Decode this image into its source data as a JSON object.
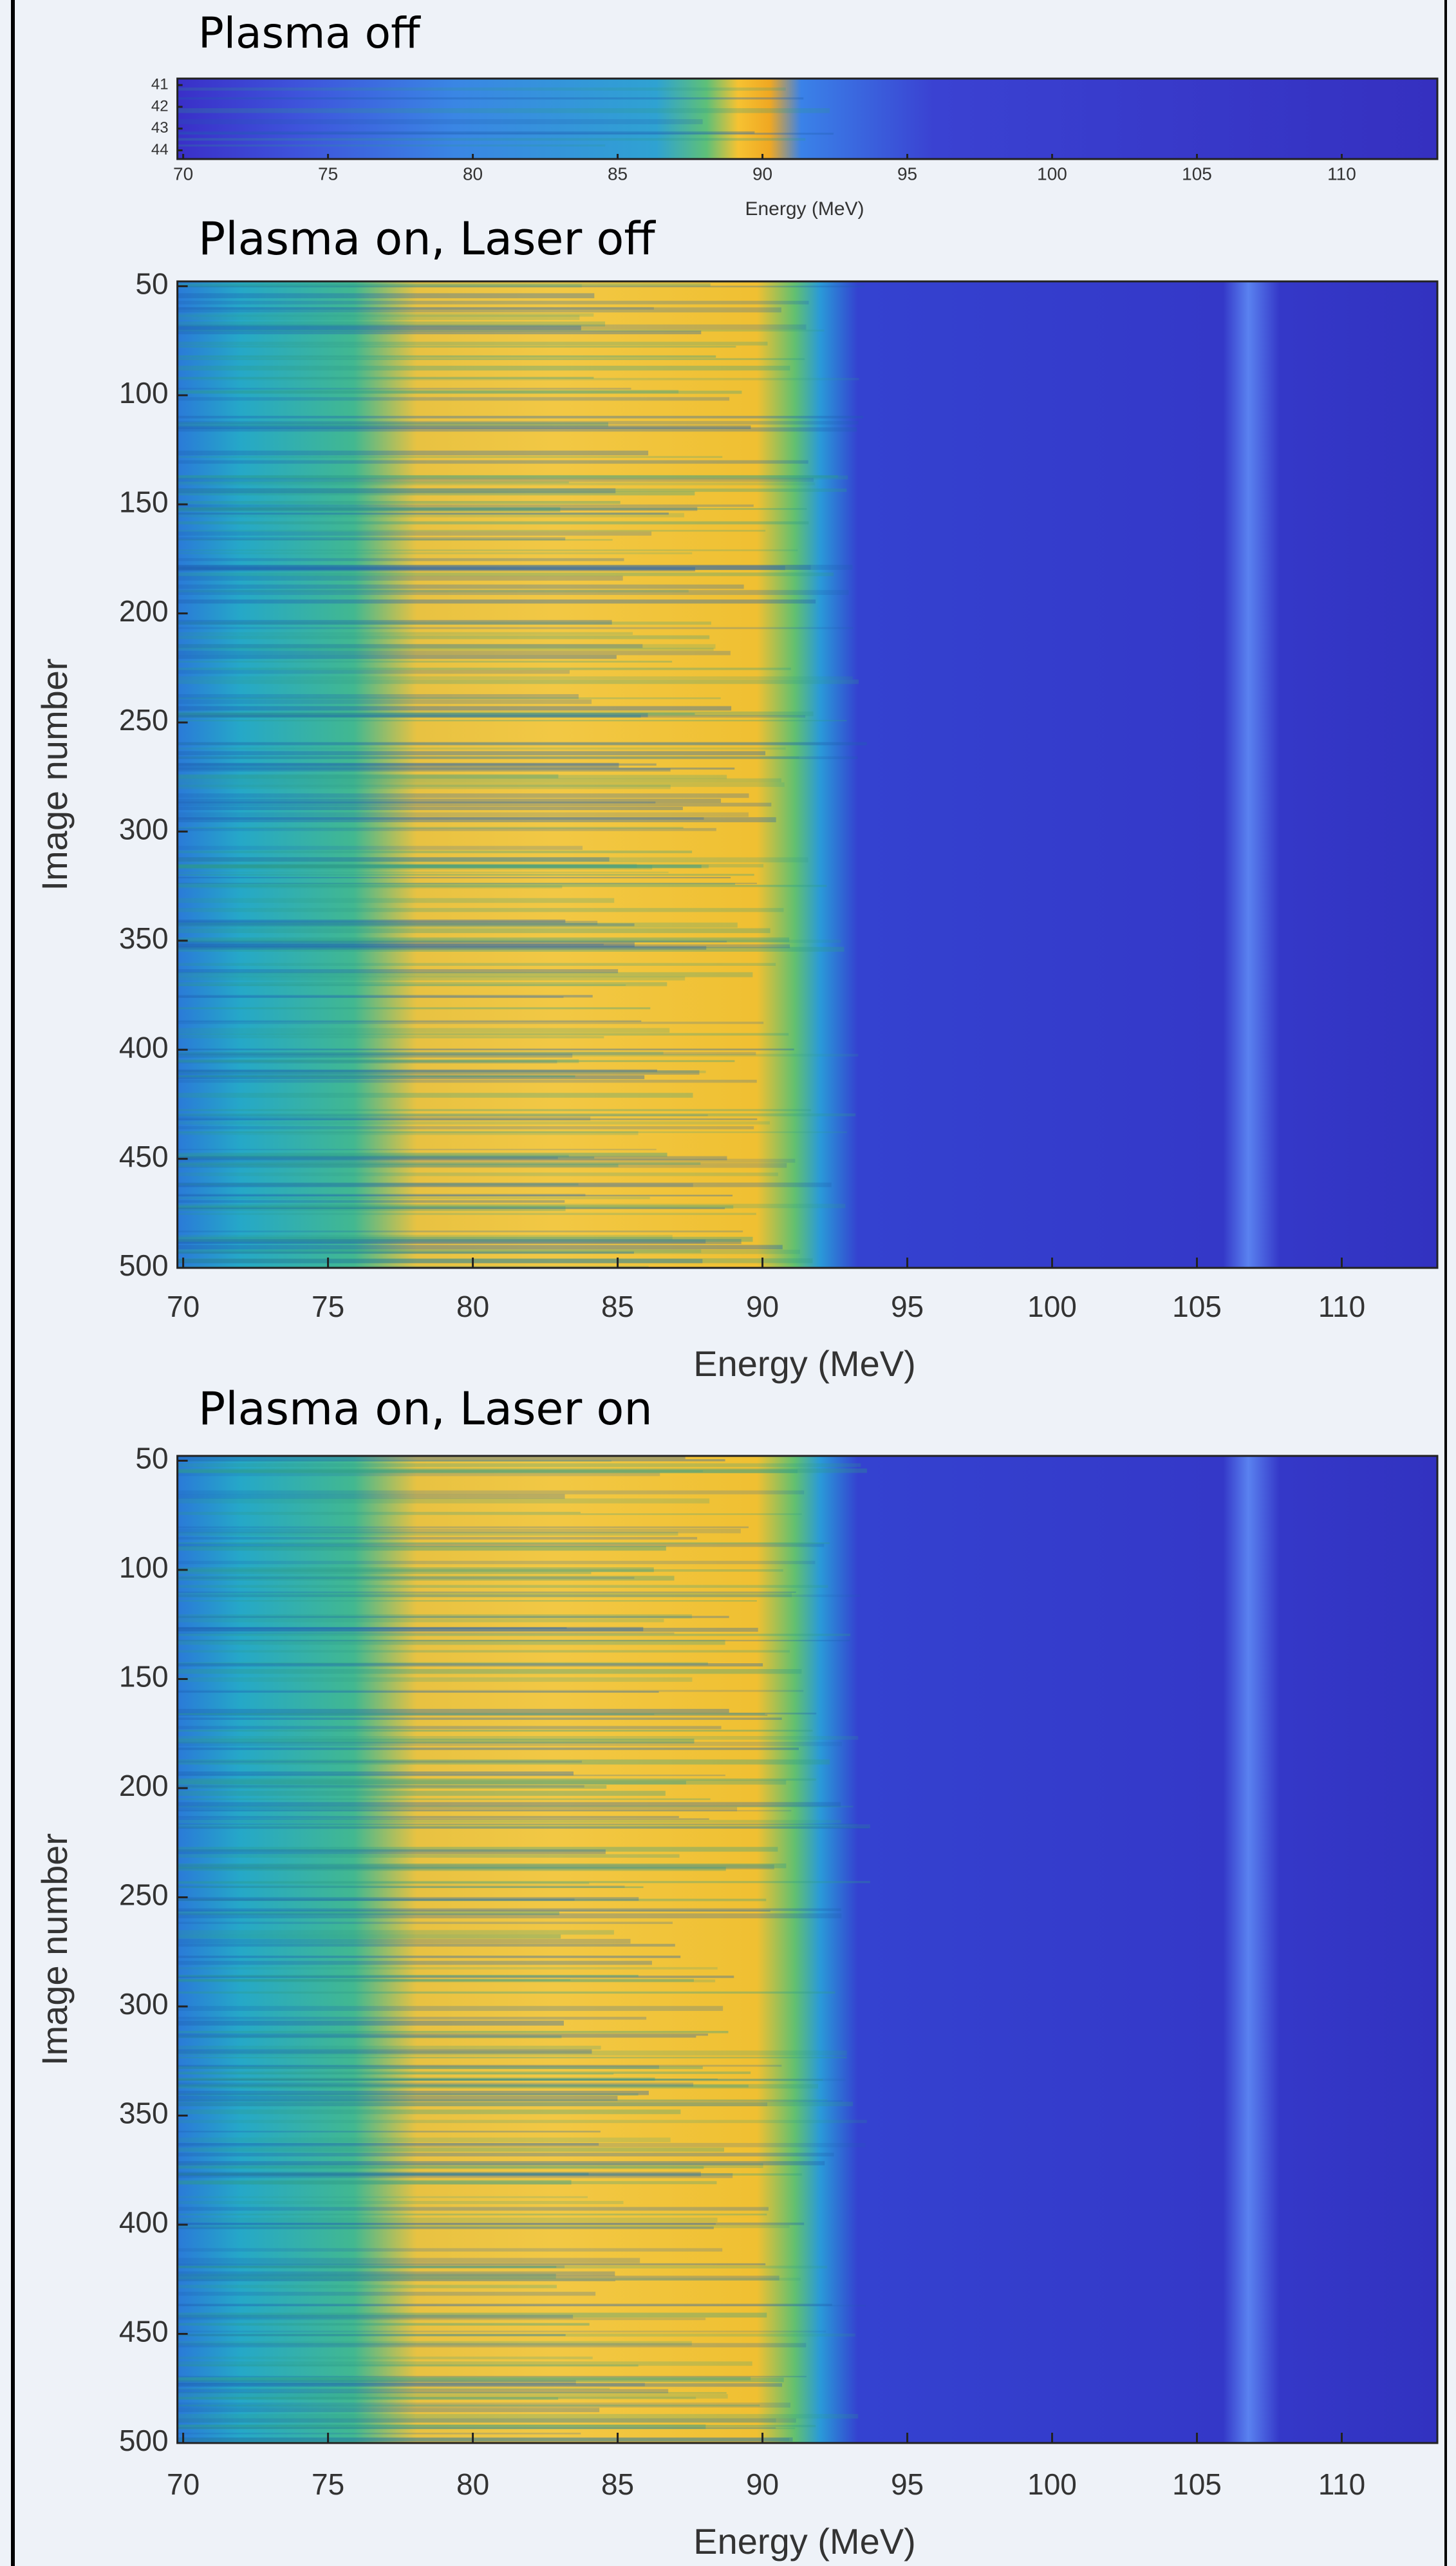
{
  "chart_data": [
    {
      "type": "heatmap",
      "title": "Plasma off",
      "xlabel": "Energy (MeV)",
      "xlim": [
        69.8,
        113.3
      ],
      "xticks": [
        70,
        75,
        80,
        85,
        90,
        95,
        100,
        105,
        110
      ],
      "ylim": [
        40.7,
        44.4
      ],
      "yticks": [
        41,
        42,
        43,
        44
      ],
      "y_inverted": true
    },
    {
      "type": "heatmap",
      "title": "Plasma on, Laser off",
      "xlabel": "Energy (MeV)",
      "ylabel": "Image number",
      "xlim": [
        69.8,
        113.3
      ],
      "xticks": [
        70,
        75,
        80,
        85,
        90,
        95,
        100,
        105,
        110
      ],
      "ylim": [
        47.8,
        500
      ],
      "yticks": [
        50,
        100,
        150,
        200,
        250,
        300,
        350,
        400,
        450,
        500
      ],
      "y_inverted": true
    },
    {
      "type": "heatmap",
      "title": "Plasma on, Laser on",
      "xlabel": "Energy (MeV)",
      "ylabel": "Image number",
      "xlim": [
        69.8,
        113.3
      ],
      "xticks": [
        70,
        75,
        80,
        85,
        90,
        95,
        100,
        105,
        110
      ],
      "ylim": [
        47.8,
        500
      ],
      "yticks": [
        50,
        100,
        150,
        200,
        250,
        300,
        350,
        400,
        450,
        500
      ],
      "y_inverted": true
    }
  ]
}
